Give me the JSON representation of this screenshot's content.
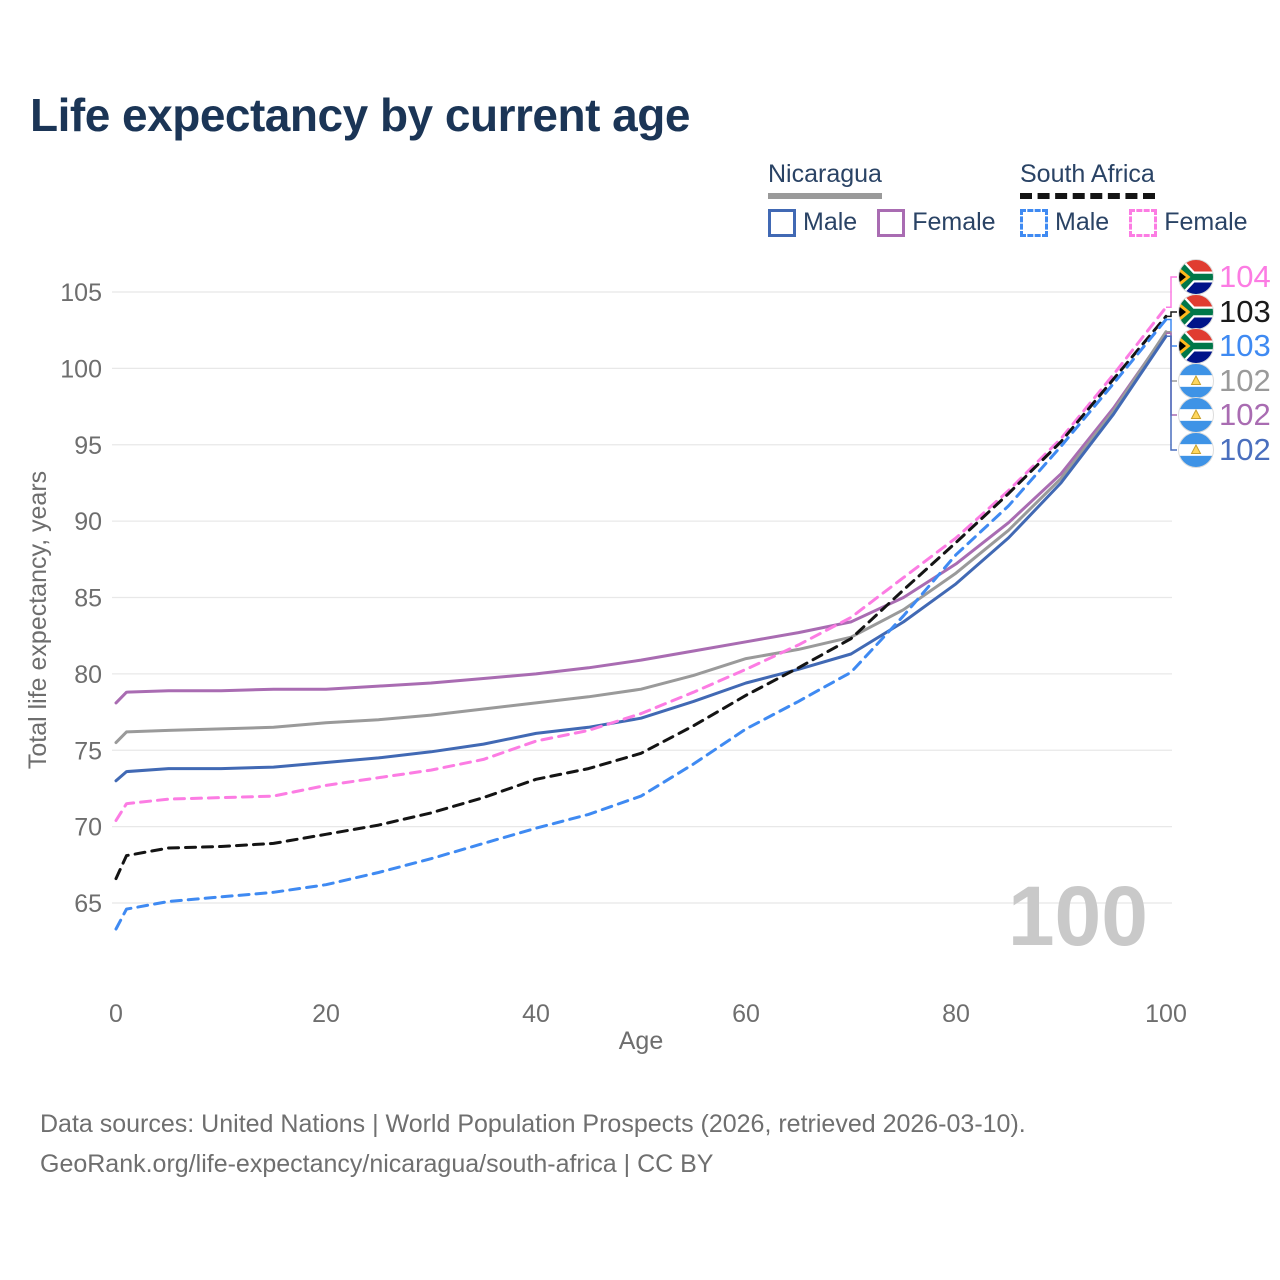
{
  "title": "Life expectancy by current age",
  "watermark_age": "100",
  "legend": {
    "groups": [
      {
        "country": "Nicaragua",
        "line_style": "solid",
        "underline_color": "#9a9a9a",
        "items": [
          {
            "label": "Male",
            "color": "#4169b4",
            "dashed": false
          },
          {
            "label": "Female",
            "color": "#a96cb2",
            "dashed": false
          }
        ]
      },
      {
        "country": "South Africa",
        "line_style": "dashed",
        "underline_color": "#141414",
        "items": [
          {
            "label": "Male",
            "color": "#3f8af2",
            "dashed": true
          },
          {
            "label": "Female",
            "color": "#fc7ce3",
            "dashed": true
          }
        ]
      }
    ]
  },
  "chart_data": {
    "type": "line",
    "title": "Life expectancy by current age",
    "xlabel": "Age",
    "ylabel": "Total life expectancy, years",
    "xlim": [
      0,
      100
    ],
    "ylim": [
      65,
      105
    ],
    "x_ticks": [
      0,
      20,
      40,
      60,
      80,
      100
    ],
    "y_ticks": [
      65,
      70,
      75,
      80,
      85,
      90,
      95,
      100,
      105
    ],
    "grid": "horizontal-only",
    "legend_position": "top-right",
    "ages": [
      0,
      1,
      5,
      10,
      15,
      20,
      25,
      30,
      35,
      40,
      45,
      50,
      55,
      60,
      65,
      70,
      75,
      80,
      85,
      90,
      95,
      100
    ],
    "series": [
      {
        "id": "nic_female",
        "name": "Nicaragua Female",
        "country": "Nicaragua",
        "sex": "Female",
        "color": "#a96cb2",
        "dashed": false,
        "values": [
          78.1,
          78.8,
          78.9,
          78.9,
          79.0,
          79.0,
          79.2,
          79.4,
          79.7,
          80.0,
          80.4,
          80.9,
          81.5,
          82.1,
          82.7,
          83.4,
          85.0,
          87.2,
          89.9,
          93.1,
          97.4,
          102.3
        ]
      },
      {
        "id": "nic_all",
        "name": "Nicaragua Both sexes",
        "country": "Nicaragua",
        "sex": "Both",
        "color": "#9a9a9a",
        "dashed": false,
        "values": [
          75.5,
          76.2,
          76.3,
          76.4,
          76.5,
          76.8,
          77.0,
          77.3,
          77.7,
          78.1,
          78.5,
          79.0,
          79.9,
          81.0,
          81.6,
          82.4,
          84.2,
          86.6,
          89.4,
          92.8,
          97.2,
          102.4
        ]
      },
      {
        "id": "nic_male",
        "name": "Nicaragua Male",
        "country": "Nicaragua",
        "sex": "Male",
        "color": "#4169b4",
        "dashed": false,
        "values": [
          73.0,
          73.6,
          73.8,
          73.8,
          73.9,
          74.2,
          74.5,
          74.9,
          75.4,
          76.1,
          76.5,
          77.1,
          78.2,
          79.4,
          80.3,
          81.3,
          83.4,
          85.9,
          88.9,
          92.5,
          97.0,
          102.1
        ]
      },
      {
        "id": "sa_female",
        "name": "South Africa Female",
        "country": "South Africa",
        "sex": "Female",
        "color": "#fc7ce3",
        "dashed": true,
        "values": [
          70.4,
          71.5,
          71.8,
          71.9,
          72.0,
          72.7,
          73.2,
          73.7,
          74.4,
          75.6,
          76.3,
          77.4,
          78.8,
          80.3,
          81.9,
          83.7,
          86.3,
          88.9,
          92.0,
          95.4,
          99.6,
          104.0
        ]
      },
      {
        "id": "sa_all",
        "name": "South Africa Both sexes",
        "country": "South Africa",
        "sex": "Both",
        "color": "#141414",
        "dashed": true,
        "values": [
          66.6,
          68.1,
          68.6,
          68.7,
          68.9,
          69.5,
          70.1,
          70.9,
          71.9,
          73.1,
          73.8,
          74.8,
          76.6,
          78.6,
          80.4,
          82.3,
          85.5,
          88.6,
          91.8,
          95.2,
          99.3,
          103.4
        ]
      },
      {
        "id": "sa_male",
        "name": "South Africa Male",
        "country": "South Africa",
        "sex": "Male",
        "color": "#3f8af2",
        "dashed": true,
        "values": [
          63.3,
          64.6,
          65.1,
          65.4,
          65.7,
          66.2,
          67.0,
          67.9,
          68.9,
          69.9,
          70.8,
          72.0,
          74.1,
          76.4,
          78.2,
          80.1,
          83.8,
          87.8,
          91.0,
          94.9,
          99.0,
          103.2
        ]
      }
    ],
    "end_labels": [
      {
        "text": "104",
        "flag": "south-africa",
        "color": "#fc7ce3",
        "series": "sa_female"
      },
      {
        "text": "103",
        "flag": "south-africa",
        "color": "#1a1a1a",
        "series": "sa_all"
      },
      {
        "text": "103",
        "flag": "south-africa",
        "color": "#3f8af2",
        "series": "sa_male"
      },
      {
        "text": "102",
        "flag": "nicaragua",
        "color": "#9a9a9a",
        "series": "nic_all"
      },
      {
        "text": "102",
        "flag": "nicaragua",
        "color": "#a96cb2",
        "series": "nic_female"
      },
      {
        "text": "102",
        "flag": "nicaragua",
        "color": "#4a6fbe",
        "series": "nic_male"
      }
    ]
  },
  "footer": {
    "line1": "Data sources: United Nations | World Population Prospects (2026, retrieved 2026-03-10).",
    "line2": "GeoRank.org/life-expectancy/nicaragua/south-africa | CC BY"
  }
}
